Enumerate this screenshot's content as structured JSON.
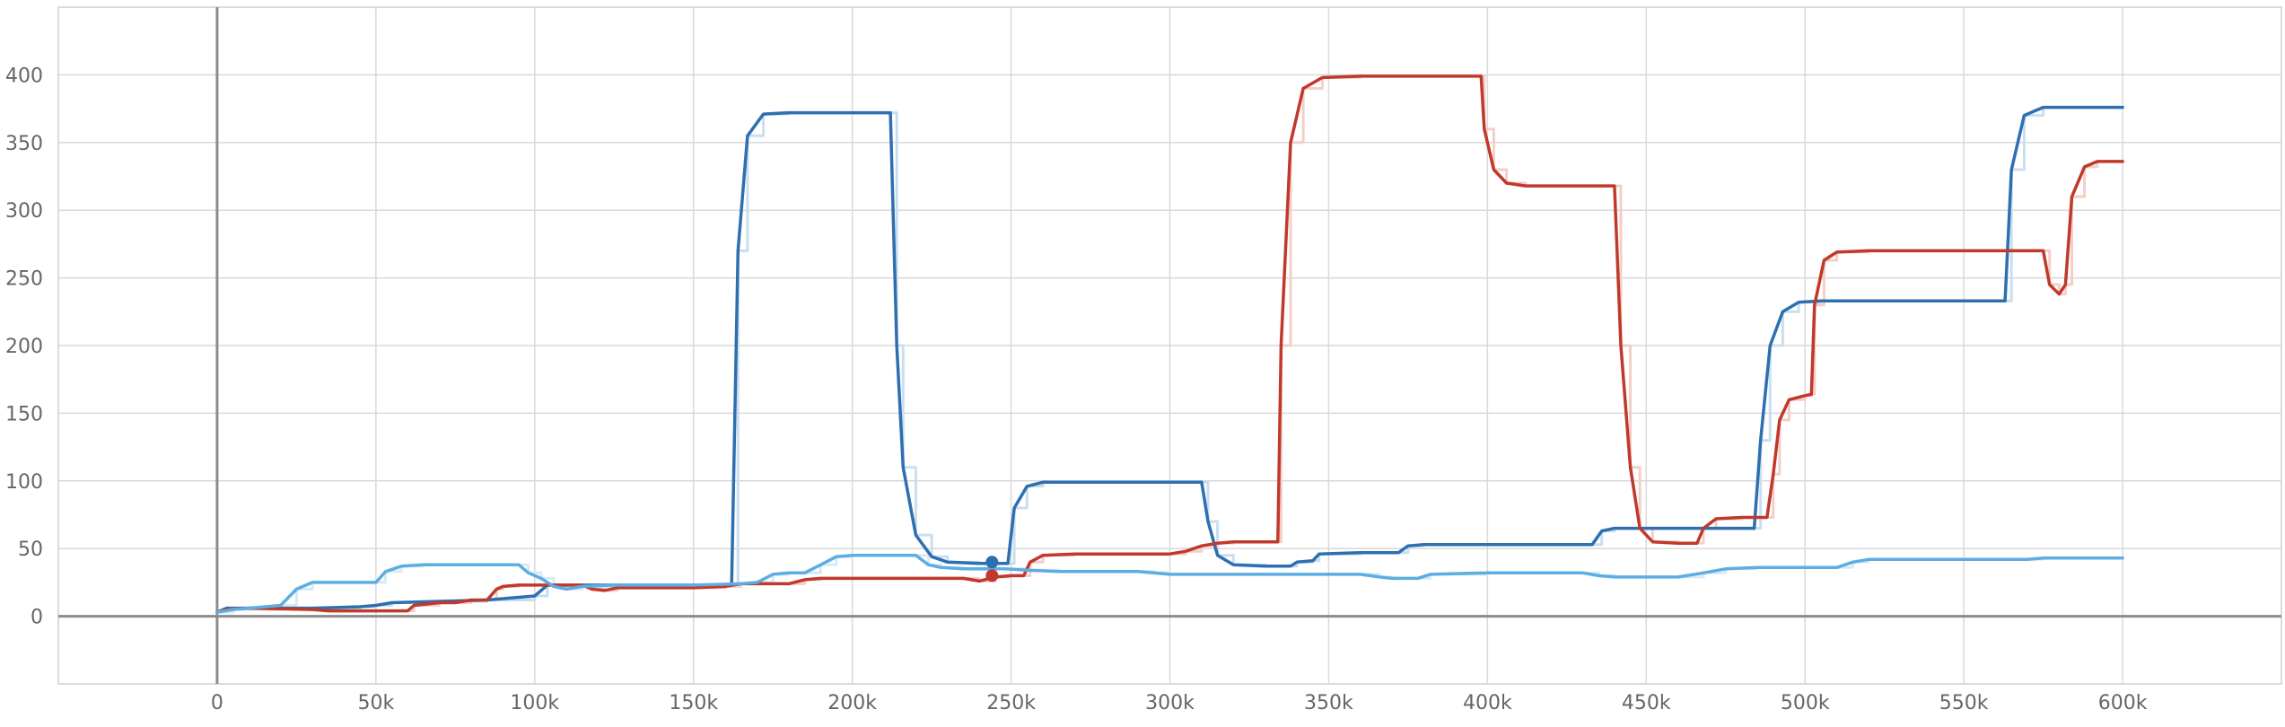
{
  "chart_data": {
    "type": "line",
    "title": "",
    "xlabel": "",
    "ylabel": "",
    "xlim": [
      -50000,
      650000
    ],
    "ylim": [
      -50,
      450
    ],
    "grid": true,
    "x_ticks": [
      0,
      50000,
      100000,
      150000,
      200000,
      250000,
      300000,
      350000,
      400000,
      450000,
      500000,
      550000,
      600000
    ],
    "x_tick_labels": [
      "0",
      "50k",
      "100k",
      "150k",
      "200k",
      "250k",
      "300k",
      "350k",
      "400k",
      "450k",
      "500k",
      "550k",
      "600k"
    ],
    "y_ticks": [
      0,
      50,
      100,
      150,
      200,
      250,
      300,
      350,
      400
    ],
    "y_tick_labels": [
      "0",
      "50",
      "100",
      "150",
      "200",
      "250",
      "300",
      "350",
      "400"
    ],
    "series": [
      {
        "color": "#2e6fb0",
        "raw_color": "#c9dff0",
        "points": [
          [
            0,
            3
          ],
          [
            3000,
            6
          ],
          [
            10000,
            6
          ],
          [
            30000,
            6
          ],
          [
            45000,
            7
          ],
          [
            50000,
            8
          ],
          [
            55000,
            10
          ],
          [
            70000,
            11
          ],
          [
            85000,
            12
          ],
          [
            100000,
            15
          ],
          [
            104000,
            23
          ],
          [
            110000,
            23
          ],
          [
            125000,
            23
          ],
          [
            150000,
            23
          ],
          [
            162000,
            23
          ],
          [
            164000,
            270
          ],
          [
            167000,
            355
          ],
          [
            172000,
            371
          ],
          [
            180000,
            372
          ],
          [
            200000,
            372
          ],
          [
            212000,
            372
          ],
          [
            214000,
            200
          ],
          [
            216000,
            110
          ],
          [
            220000,
            60
          ],
          [
            225000,
            44
          ],
          [
            230000,
            40
          ],
          [
            240000,
            39
          ],
          [
            248000,
            39
          ],
          [
            249000,
            39
          ],
          [
            251000,
            80
          ],
          [
            255000,
            96
          ],
          [
            260000,
            99
          ],
          [
            280000,
            99
          ],
          [
            310000,
            99
          ],
          [
            312000,
            70
          ],
          [
            315000,
            45
          ],
          [
            320000,
            38
          ],
          [
            330000,
            37
          ],
          [
            338000,
            37
          ],
          [
            340000,
            40
          ],
          [
            345000,
            41
          ],
          [
            347000,
            46
          ],
          [
            360000,
            47
          ],
          [
            372000,
            47
          ],
          [
            375000,
            52
          ],
          [
            380000,
            53
          ],
          [
            400000,
            53
          ],
          [
            420000,
            53
          ],
          [
            433000,
            53
          ],
          [
            436000,
            63
          ],
          [
            440000,
            65
          ],
          [
            460000,
            65
          ],
          [
            484000,
            65
          ],
          [
            486000,
            130
          ],
          [
            489000,
            200
          ],
          [
            493000,
            225
          ],
          [
            498000,
            232
          ],
          [
            505000,
            233
          ],
          [
            530000,
            233
          ],
          [
            563000,
            233
          ],
          [
            565000,
            330
          ],
          [
            569000,
            370
          ],
          [
            575000,
            376
          ],
          [
            600000,
            376
          ]
        ]
      },
      {
        "color": "#c0392b",
        "raw_color": "#f4cfc8",
        "points": [
          [
            0,
            3
          ],
          [
            3000,
            5
          ],
          [
            10000,
            6
          ],
          [
            30000,
            5
          ],
          [
            35000,
            4
          ],
          [
            50000,
            4
          ],
          [
            60000,
            4
          ],
          [
            62000,
            8
          ],
          [
            70000,
            10
          ],
          [
            75000,
            10
          ],
          [
            80000,
            12
          ],
          [
            85000,
            12
          ],
          [
            88000,
            20
          ],
          [
            90000,
            22
          ],
          [
            95000,
            23
          ],
          [
            105000,
            23
          ],
          [
            115000,
            23
          ],
          [
            118000,
            20
          ],
          [
            122000,
            19
          ],
          [
            126000,
            21
          ],
          [
            130000,
            21
          ],
          [
            150000,
            21
          ],
          [
            160000,
            22
          ],
          [
            165000,
            24
          ],
          [
            180000,
            24
          ],
          [
            185000,
            27
          ],
          [
            190000,
            28
          ],
          [
            220000,
            28
          ],
          [
            235000,
            28
          ],
          [
            240000,
            26
          ],
          [
            245000,
            29
          ],
          [
            250000,
            30
          ],
          [
            254000,
            30
          ],
          [
            256000,
            40
          ],
          [
            260000,
            45
          ],
          [
            270000,
            46
          ],
          [
            300000,
            46
          ],
          [
            305000,
            48
          ],
          [
            310000,
            52
          ],
          [
            315000,
            54
          ],
          [
            320000,
            55
          ],
          [
            334000,
            55
          ],
          [
            335000,
            200
          ],
          [
            338000,
            350
          ],
          [
            342000,
            390
          ],
          [
            348000,
            398
          ],
          [
            360000,
            399
          ],
          [
            398000,
            399
          ],
          [
            399000,
            360
          ],
          [
            402000,
            330
          ],
          [
            406000,
            320
          ],
          [
            412000,
            318
          ],
          [
            440000,
            318
          ],
          [
            442000,
            200
          ],
          [
            445000,
            110
          ],
          [
            448000,
            65
          ],
          [
            452000,
            55
          ],
          [
            460000,
            54
          ],
          [
            466000,
            54
          ],
          [
            468000,
            65
          ],
          [
            472000,
            72
          ],
          [
            480000,
            73
          ],
          [
            488000,
            73
          ],
          [
            490000,
            105
          ],
          [
            492000,
            145
          ],
          [
            495000,
            160
          ],
          [
            500000,
            163
          ],
          [
            502000,
            164
          ],
          [
            503000,
            230
          ],
          [
            506000,
            263
          ],
          [
            510000,
            269
          ],
          [
            520000,
            270
          ],
          [
            550000,
            270
          ],
          [
            575000,
            270
          ],
          [
            577000,
            245
          ],
          [
            580000,
            238
          ],
          [
            582000,
            245
          ],
          [
            584000,
            310
          ],
          [
            588000,
            332
          ],
          [
            592000,
            336
          ],
          [
            600000,
            336
          ]
        ]
      },
      {
        "color": "#5dade2",
        "raw_color": "#d6ebf8",
        "points": [
          [
            0,
            3
          ],
          [
            5000,
            5
          ],
          [
            20000,
            8
          ],
          [
            25000,
            20
          ],
          [
            30000,
            25
          ],
          [
            35000,
            25
          ],
          [
            40000,
            25
          ],
          [
            50000,
            25
          ],
          [
            53000,
            33
          ],
          [
            58000,
            37
          ],
          [
            65000,
            38
          ],
          [
            80000,
            38
          ],
          [
            95000,
            38
          ],
          [
            98000,
            32
          ],
          [
            102000,
            28
          ],
          [
            106000,
            22
          ],
          [
            110000,
            20
          ],
          [
            115000,
            22
          ],
          [
            125000,
            23
          ],
          [
            150000,
            23
          ],
          [
            165000,
            24
          ],
          [
            170000,
            25
          ],
          [
            175000,
            31
          ],
          [
            180000,
            32
          ],
          [
            185000,
            32
          ],
          [
            190000,
            38
          ],
          [
            195000,
            44
          ],
          [
            200000,
            45
          ],
          [
            215000,
            45
          ],
          [
            220000,
            45
          ],
          [
            224000,
            38
          ],
          [
            228000,
            36
          ],
          [
            235000,
            35
          ],
          [
            248000,
            35
          ],
          [
            255000,
            34
          ],
          [
            265000,
            33
          ],
          [
            290000,
            33
          ],
          [
            295000,
            32
          ],
          [
            300000,
            31
          ],
          [
            320000,
            31
          ],
          [
            340000,
            31
          ],
          [
            360000,
            31
          ],
          [
            366000,
            29
          ],
          [
            370000,
            28
          ],
          [
            378000,
            28
          ],
          [
            382000,
            31
          ],
          [
            400000,
            32
          ],
          [
            420000,
            32
          ],
          [
            430000,
            32
          ],
          [
            435000,
            30
          ],
          [
            440000,
            29
          ],
          [
            460000,
            29
          ],
          [
            468000,
            32
          ],
          [
            475000,
            35
          ],
          [
            485000,
            36
          ],
          [
            500000,
            36
          ],
          [
            510000,
            36
          ],
          [
            515000,
            40
          ],
          [
            520000,
            42
          ],
          [
            540000,
            42
          ],
          [
            570000,
            42
          ],
          [
            575000,
            43
          ],
          [
            600000,
            43
          ]
        ]
      }
    ],
    "markers": [
      {
        "x": 244000,
        "y": 40,
        "color": "#2e6fb0"
      },
      {
        "x": 244000,
        "y": 30,
        "color": "#c0392b"
      }
    ]
  }
}
